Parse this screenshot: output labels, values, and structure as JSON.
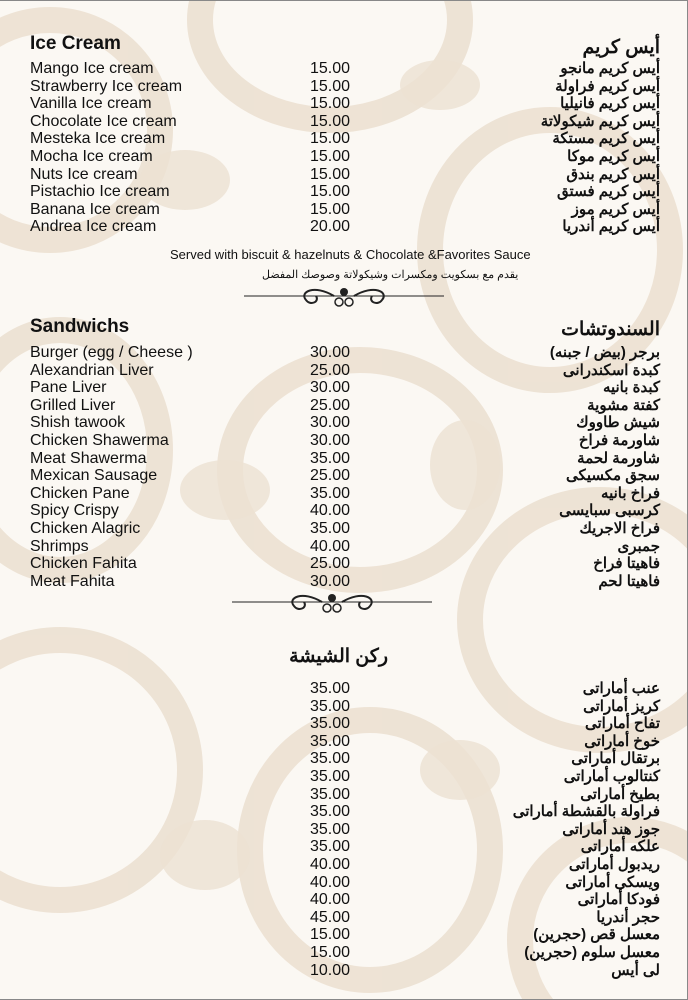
{
  "ice_cream": {
    "title_en": "Ice Cream",
    "title_ar": "أيس كريم",
    "items": [
      {
        "en": "Mango Ice cream",
        "price": "15.00",
        "ar": "أيس كريم مانجو"
      },
      {
        "en": "Strawberry Ice cream",
        "price": "15.00",
        "ar": "أيس كريم فراولة"
      },
      {
        "en": "Vanilla Ice cream",
        "price": "15.00",
        "ar": "أيس كريم فانيليا"
      },
      {
        "en": "Chocolate Ice cream",
        "price": "15.00",
        "ar": "أيس كريم شيكولاتة"
      },
      {
        "en": "Mesteka Ice cream",
        "price": "15.00",
        "ar": "أيس كريم مستكة"
      },
      {
        "en": "Mocha Ice cream",
        "price": "15.00",
        "ar": "أيس كريم موكا"
      },
      {
        "en": "Nuts Ice cream",
        "price": "15.00",
        "ar": "أيس كريم بندق"
      },
      {
        "en": "Pistachio Ice cream",
        "price": "15.00",
        "ar": "أيس كريم فستق"
      },
      {
        "en": "Banana Ice cream",
        "price": "15.00",
        "ar": "أيس كريم موز"
      },
      {
        "en": "Andrea Ice cream",
        "price": "20.00",
        "ar": "أيس كريم أندريا"
      }
    ],
    "note_en": "Served with biscuit & hazelnuts & Chocolate &Favorites Sauce",
    "note_ar": "يقدم مع بسكويت ومكسرات وشيكولاتة وصوصك المفضل"
  },
  "sandwiches": {
    "title_en": "Sandwichs",
    "title_ar": "السندوتشات",
    "items": [
      {
        "en": "Burger (egg / Cheese )",
        "price": "30.00",
        "ar": "برجر (بيض / جبنه)"
      },
      {
        "en": "Alexandrian Liver",
        "price": "25.00",
        "ar": "كبدة اسكندرانى"
      },
      {
        "en": "Pane Liver",
        "price": "30.00",
        "ar": "كبدة بانيه"
      },
      {
        "en": "Grilled Liver",
        "price": "25.00",
        "ar": "كفتة مشوية"
      },
      {
        "en": "Shish tawook",
        "price": "30.00",
        "ar": "شيش طاووك"
      },
      {
        "en": "Chicken Shawerma",
        "price": "30.00",
        "ar": "شاورمة فراخ"
      },
      {
        "en": "Meat Shawerma",
        "price": "35.00",
        "ar": "شاورمة لحمة"
      },
      {
        "en": "Mexican Sausage",
        "price": "25.00",
        "ar": "سجق مكسيكى"
      },
      {
        "en": "Chicken Pane",
        "price": "35.00",
        "ar": "فراخ بانيه"
      },
      {
        "en": "Spicy Crispy",
        "price": "40.00",
        "ar": "كرسبى سبايسى"
      },
      {
        "en": "Chicken Alagric",
        "price": "35.00",
        "ar": "فراخ الاجريك"
      },
      {
        "en": "Shrimps",
        "price": "40.00",
        "ar": "جمبرى"
      },
      {
        "en": "Chicken Fahita",
        "price": "25.00",
        "ar": "فاهيتا فراخ"
      },
      {
        "en": "Meat Fahita",
        "price": "30.00",
        "ar": "فاهيتا لحم"
      }
    ]
  },
  "shisha": {
    "title_ar": "ركن الشيشة",
    "items": [
      {
        "price": "35.00",
        "ar": "عنب أماراتى"
      },
      {
        "price": "35.00",
        "ar": "كريز أماراتى"
      },
      {
        "price": "35.00",
        "ar": "تفاح أماراتى"
      },
      {
        "price": "35.00",
        "ar": "خوخ أماراتى"
      },
      {
        "price": "35.00",
        "ar": "برتقال أماراتى"
      },
      {
        "price": "35.00",
        "ar": "كنتالوب أماراتى"
      },
      {
        "price": "35.00",
        "ar": "بطيخ أماراتى"
      },
      {
        "price": "35.00",
        "ar": "فراولة بالقشطة أماراتى"
      },
      {
        "price": "35.00",
        "ar": "جوز هند أماراتى"
      },
      {
        "price": "35.00",
        "ar": "علكه أماراتى"
      },
      {
        "price": "40.00",
        "ar": "ريدبول أماراتى"
      },
      {
        "price": "40.00",
        "ar": "ويسكى أماراتى"
      },
      {
        "price": "40.00",
        "ar": "فودكا أماراتى"
      },
      {
        "price": "45.00",
        "ar": "حجر أندريا"
      },
      {
        "price": "15.00",
        "ar": "معسل قص (حجرين)"
      },
      {
        "price": "15.00",
        "ar": "معسل سلوم (حجرين)"
      },
      {
        "price": "10.00",
        "ar": "لى أيس"
      }
    ]
  },
  "colors": {
    "background": "#fbf8f3",
    "damask": "#e9dccb",
    "text": "#111111"
  }
}
